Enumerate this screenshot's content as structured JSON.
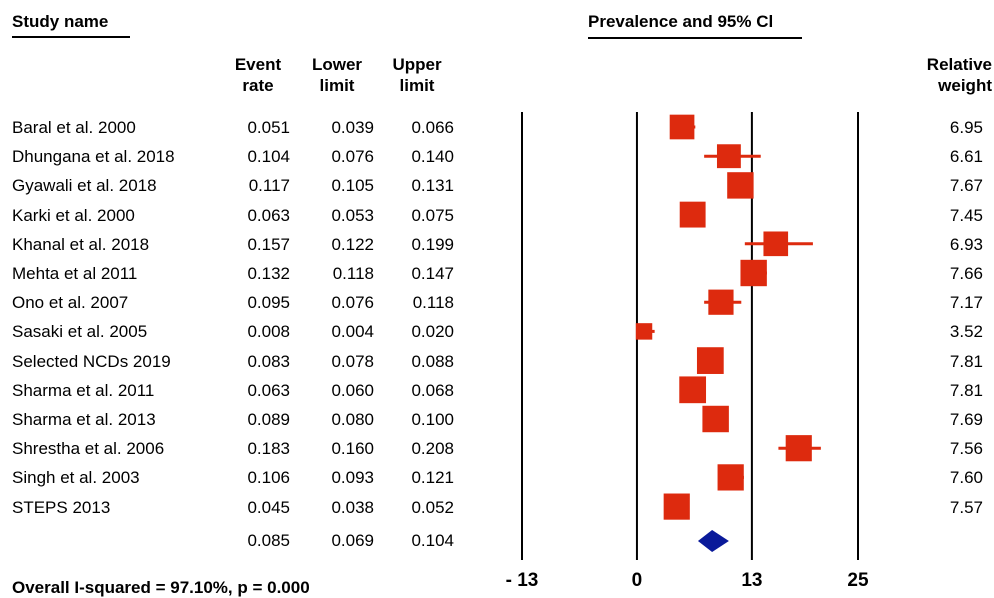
{
  "header": {
    "study_name": "Study name",
    "plot_title": "Prevalence and 95% Cl",
    "event_rate": "Event rate",
    "lower_limit": "Lower limit",
    "upper_limit": "Upper limit",
    "relative_weight": "Relative weight"
  },
  "footer": {
    "heterogeneity": "Overall I-squared = 97.10%, p = 0.000"
  },
  "colors": {
    "study_marker": "#dd2a0e",
    "summary_marker": "#0a1a9a"
  },
  "chart_data": {
    "type": "forest",
    "title": "Prevalence and 95% Cl",
    "x_ticks": [
      "- 13",
      "0",
      "13",
      "25"
    ],
    "xlim": [
      -13,
      25
    ],
    "studies": [
      {
        "name": "Baral et al. 2000",
        "event_rate": "0.051",
        "lower": "0.039",
        "upper": "0.066",
        "weight": "6.95"
      },
      {
        "name": "Dhungana et al. 2018",
        "event_rate": "0.104",
        "lower": "0.076",
        "upper": "0.140",
        "weight": "6.61"
      },
      {
        "name": "Gyawali et al. 2018",
        "event_rate": "0.117",
        "lower": "0.105",
        "upper": "0.131",
        "weight": "7.67"
      },
      {
        "name": "Karki et al. 2000",
        "event_rate": "0.063",
        "lower": "0.053",
        "upper": "0.075",
        "weight": "7.45"
      },
      {
        "name": "Khanal et al. 2018",
        "event_rate": "0.157",
        "lower": "0.122",
        "upper": "0.199",
        "weight": "6.93"
      },
      {
        "name": "Mehta et al 2011",
        "event_rate": "0.132",
        "lower": "0.118",
        "upper": "0.147",
        "weight": "7.66"
      },
      {
        "name": "Ono et al. 2007",
        "event_rate": "0.095",
        "lower": "0.076",
        "upper": "0.118",
        "weight": "7.17"
      },
      {
        "name": "Sasaki et al. 2005",
        "event_rate": "0.008",
        "lower": "0.004",
        "upper": "0.020",
        "weight": "3.52"
      },
      {
        "name": "Selected NCDs 2019",
        "event_rate": "0.083",
        "lower": "0.078",
        "upper": "0.088",
        "weight": "7.81"
      },
      {
        "name": "Sharma et al. 2011",
        "event_rate": "0.063",
        "lower": "0.060",
        "upper": "0.068",
        "weight": "7.81"
      },
      {
        "name": "Sharma et al. 2013",
        "event_rate": "0.089",
        "lower": "0.080",
        "upper": "0.100",
        "weight": "7.69"
      },
      {
        "name": "Shrestha et al. 2006",
        "event_rate": "0.183",
        "lower": "0.160",
        "upper": "0.208",
        "weight": "7.56"
      },
      {
        "name": "Singh et al. 2003",
        "event_rate": "0.106",
        "lower": "0.093",
        "upper": "0.121",
        "weight": "7.60"
      },
      {
        "name": "STEPS 2013",
        "event_rate": "0.045",
        "lower": "0.038",
        "upper": "0.052",
        "weight": "7.57"
      }
    ],
    "overall": {
      "event_rate": "0.085",
      "lower": "0.069",
      "upper": "0.104"
    }
  }
}
